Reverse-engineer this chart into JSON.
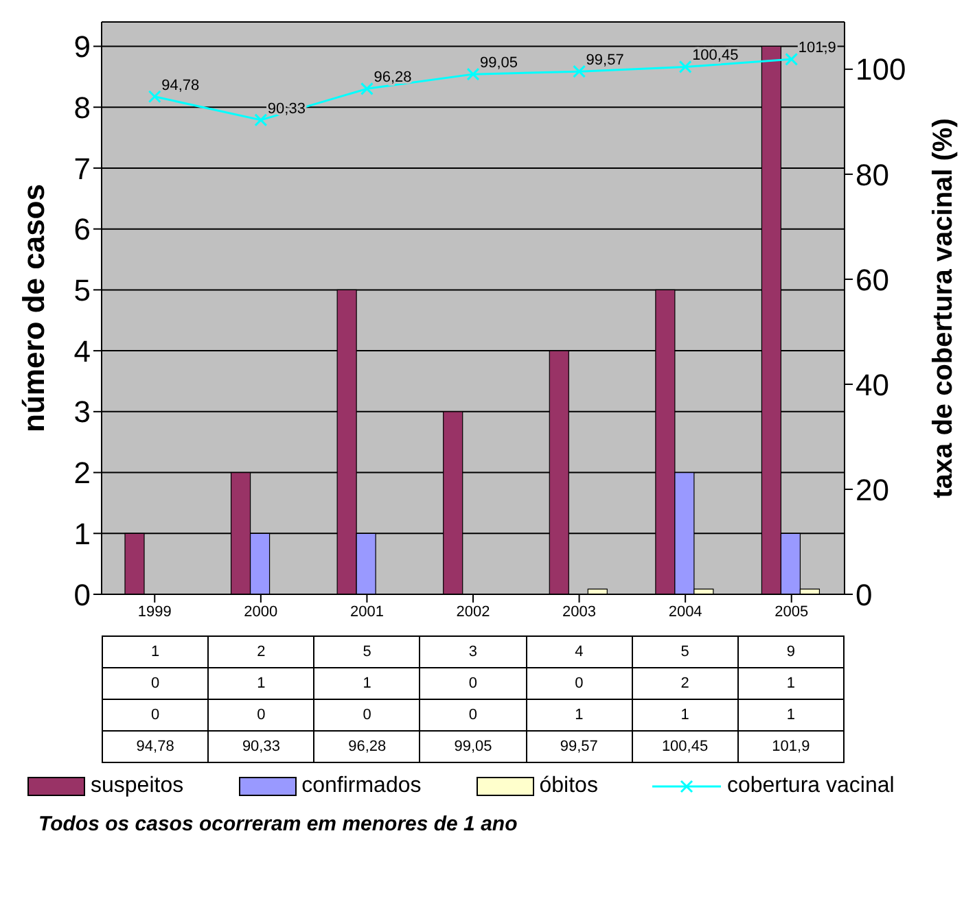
{
  "chart_data": {
    "type": "bar",
    "ylabel": "número de casos",
    "y2label": "taxa de cobertura vacinal (%)",
    "categories": [
      "1999",
      "2000",
      "2001",
      "2002",
      "2003",
      "2004",
      "2005"
    ],
    "series": [
      {
        "name": "suspeitos",
        "color": "#993366",
        "values": [
          1,
          2,
          5,
          3,
          4,
          5,
          9
        ]
      },
      {
        "name": "confirmados",
        "color": "#9999ff",
        "values": [
          0,
          1,
          1,
          0,
          0,
          2,
          1
        ]
      },
      {
        "name": "óbitos",
        "color": "#ffffcc",
        "values": [
          0,
          0,
          0,
          0,
          1,
          1,
          1
        ],
        "axis": "y2"
      },
      {
        "name": "cobertura vacinal",
        "type": "line",
        "color": "#00ffff",
        "axis": "y2",
        "marker": "cross",
        "values": [
          94.78,
          90.33,
          96.28,
          99.05,
          99.57,
          100.45,
          101.9
        ],
        "value_labels": [
          "94,78",
          "90,33",
          "96,28",
          "99,05",
          "99,57",
          "100,45",
          "101,9"
        ]
      }
    ],
    "ylim": [
      0,
      9.4
    ],
    "yticks": [
      0,
      1,
      2,
      3,
      4,
      5,
      6,
      7,
      8,
      9
    ],
    "y2lim": [
      0,
      109
    ],
    "y2ticks": [
      0,
      20,
      40,
      60,
      80,
      100
    ],
    "grid": "y",
    "legend": "bottom",
    "data_labels": true,
    "annotations": [
      "Todos os casos ocorreram em menores de 1 ano"
    ]
  }
}
